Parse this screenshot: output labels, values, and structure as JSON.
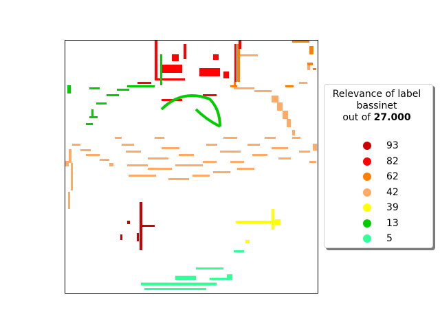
{
  "legend": {
    "title_line1": "Relevance of label",
    "title_line2": "bassinet",
    "title_line3_prefix": "out of ",
    "title_line3_value": "27.000",
    "items": [
      {
        "label": "93",
        "color": "#cc0000"
      },
      {
        "label": "82",
        "color": "#ff0000"
      },
      {
        "label": "62",
        "color": "#ff8000"
      },
      {
        "label": "42",
        "color": "#ffaa66"
      },
      {
        "label": "39",
        "color": "#ffff00"
      },
      {
        "label": "13",
        "color": "#00cc00"
      },
      {
        "label": "5",
        "color": "#33ff99"
      }
    ]
  }
}
